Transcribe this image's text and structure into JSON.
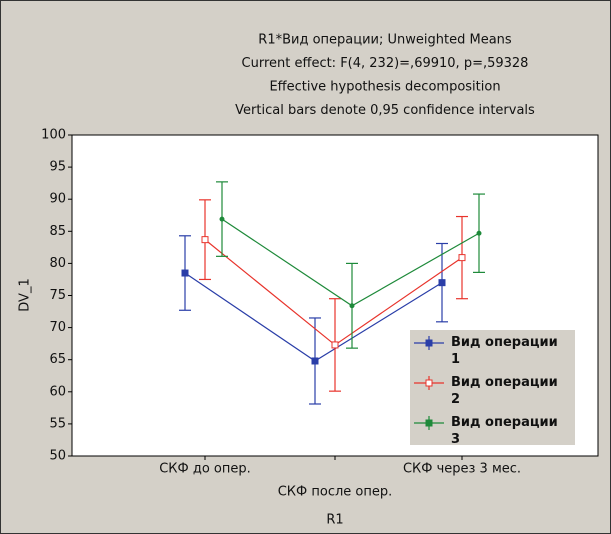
{
  "chart_data": {
    "type": "line",
    "title": [
      "R1*Вид операции; Unweighted Means",
      "Current effect: F(4, 232)=,69910, p=,59328",
      "Effective hypothesis decomposition",
      "Vertical bars denote 0,95 confidence intervals"
    ],
    "x_label": "R1",
    "y_label": "DV_1",
    "categories": [
      "СКФ до опер.",
      "СКФ после опер.",
      "СКФ через 3 мес."
    ],
    "series": [
      {
        "name": "Вид операции 1",
        "color": "#2a3ea8",
        "values": [
          78.5,
          64.8,
          77.0
        ],
        "errors": [
          5.8,
          6.7,
          6.1
        ]
      },
      {
        "name": "Вид операции 2",
        "color": "#e8342c",
        "values": [
          83.7,
          67.3,
          80.9
        ],
        "errors": [
          6.2,
          7.2,
          6.4
        ]
      },
      {
        "name": "Вид операции 3",
        "color": "#1e8a3a",
        "values": [
          86.9,
          73.4,
          84.7
        ],
        "errors": [
          5.8,
          6.6,
          6.1
        ]
      }
    ],
    "ylim": [
      50,
      100
    ],
    "yticks": [
      50,
      55,
      60,
      65,
      70,
      75,
      80,
      85,
      90,
      95,
      100
    ]
  }
}
